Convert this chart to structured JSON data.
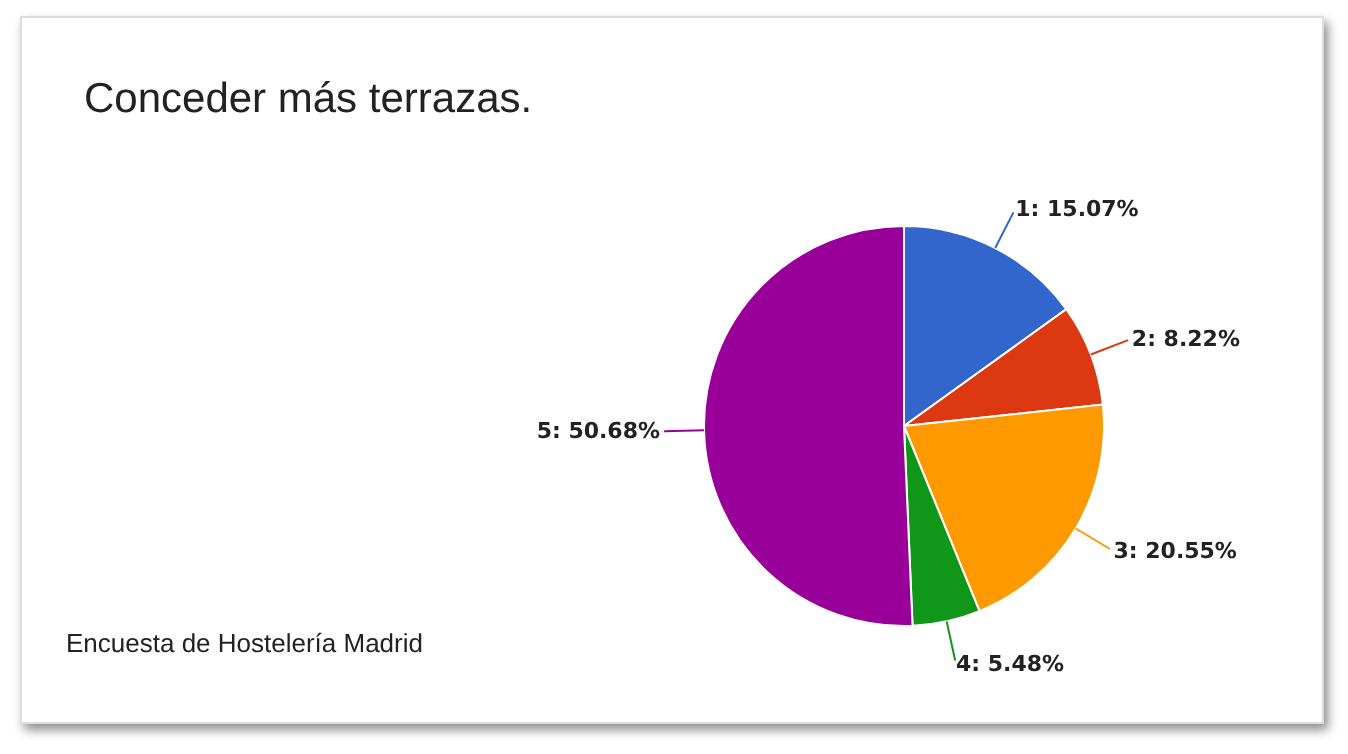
{
  "chart_data": {
    "type": "pie",
    "title": "Conceder más terrazas.",
    "categories": [
      "1",
      "2",
      "3",
      "4",
      "5"
    ],
    "values": [
      15.07,
      8.22,
      20.55,
      5.48,
      50.68
    ],
    "colors": [
      "#3366cc",
      "#dc3912",
      "#ff9900",
      "#109618",
      "#990099"
    ],
    "value_labels": [
      "15.07%",
      "8.22%",
      "20.55%",
      "5.48%",
      "50.68%"
    ],
    "annotations": [
      "Encuesta de Hostelería Madrid"
    ]
  }
}
